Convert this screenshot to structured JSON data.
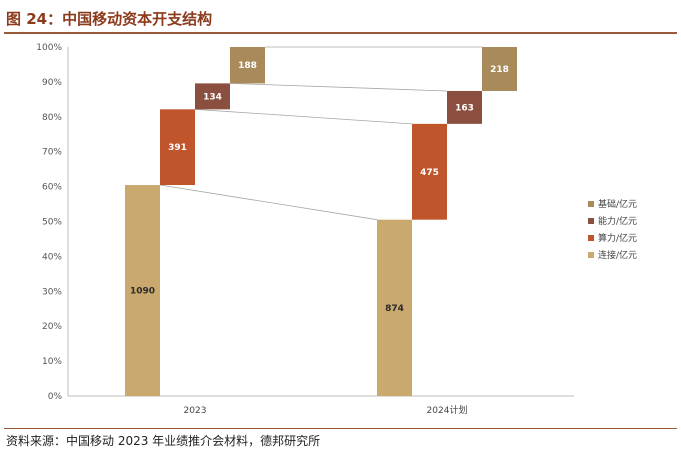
{
  "figure": {
    "title": "图 24：中国移动资本开支结构",
    "source": "资料来源：中国移动 2023 年业绩推介会材料，德邦研究所"
  },
  "chart_data": {
    "type": "bar",
    "stacking": "percent",
    "categories": [
      "2023",
      "2024计划"
    ],
    "series": [
      {
        "name": "连接/亿元",
        "values": [
          1090,
          874
        ],
        "color": "#c9a96e"
      },
      {
        "name": "算力/亿元",
        "values": [
          391,
          475
        ],
        "color": "#c0542a"
      },
      {
        "name": "能力/亿元",
        "values": [
          134,
          163
        ],
        "color": "#8b4f3f"
      },
      {
        "name": "基础/亿元",
        "values": [
          188,
          218
        ],
        "color": "#a98a5a"
      }
    ],
    "legend_order": [
      "基础/亿元",
      "能力/亿元",
      "算力/亿元",
      "连接/亿元"
    ],
    "yticks": [
      "0%",
      "10%",
      "20%",
      "30%",
      "40%",
      "50%",
      "60%",
      "70%",
      "80%",
      "90%",
      "100%"
    ],
    "ylim": [
      0,
      100
    ],
    "grid": false,
    "legend_position": "right"
  }
}
